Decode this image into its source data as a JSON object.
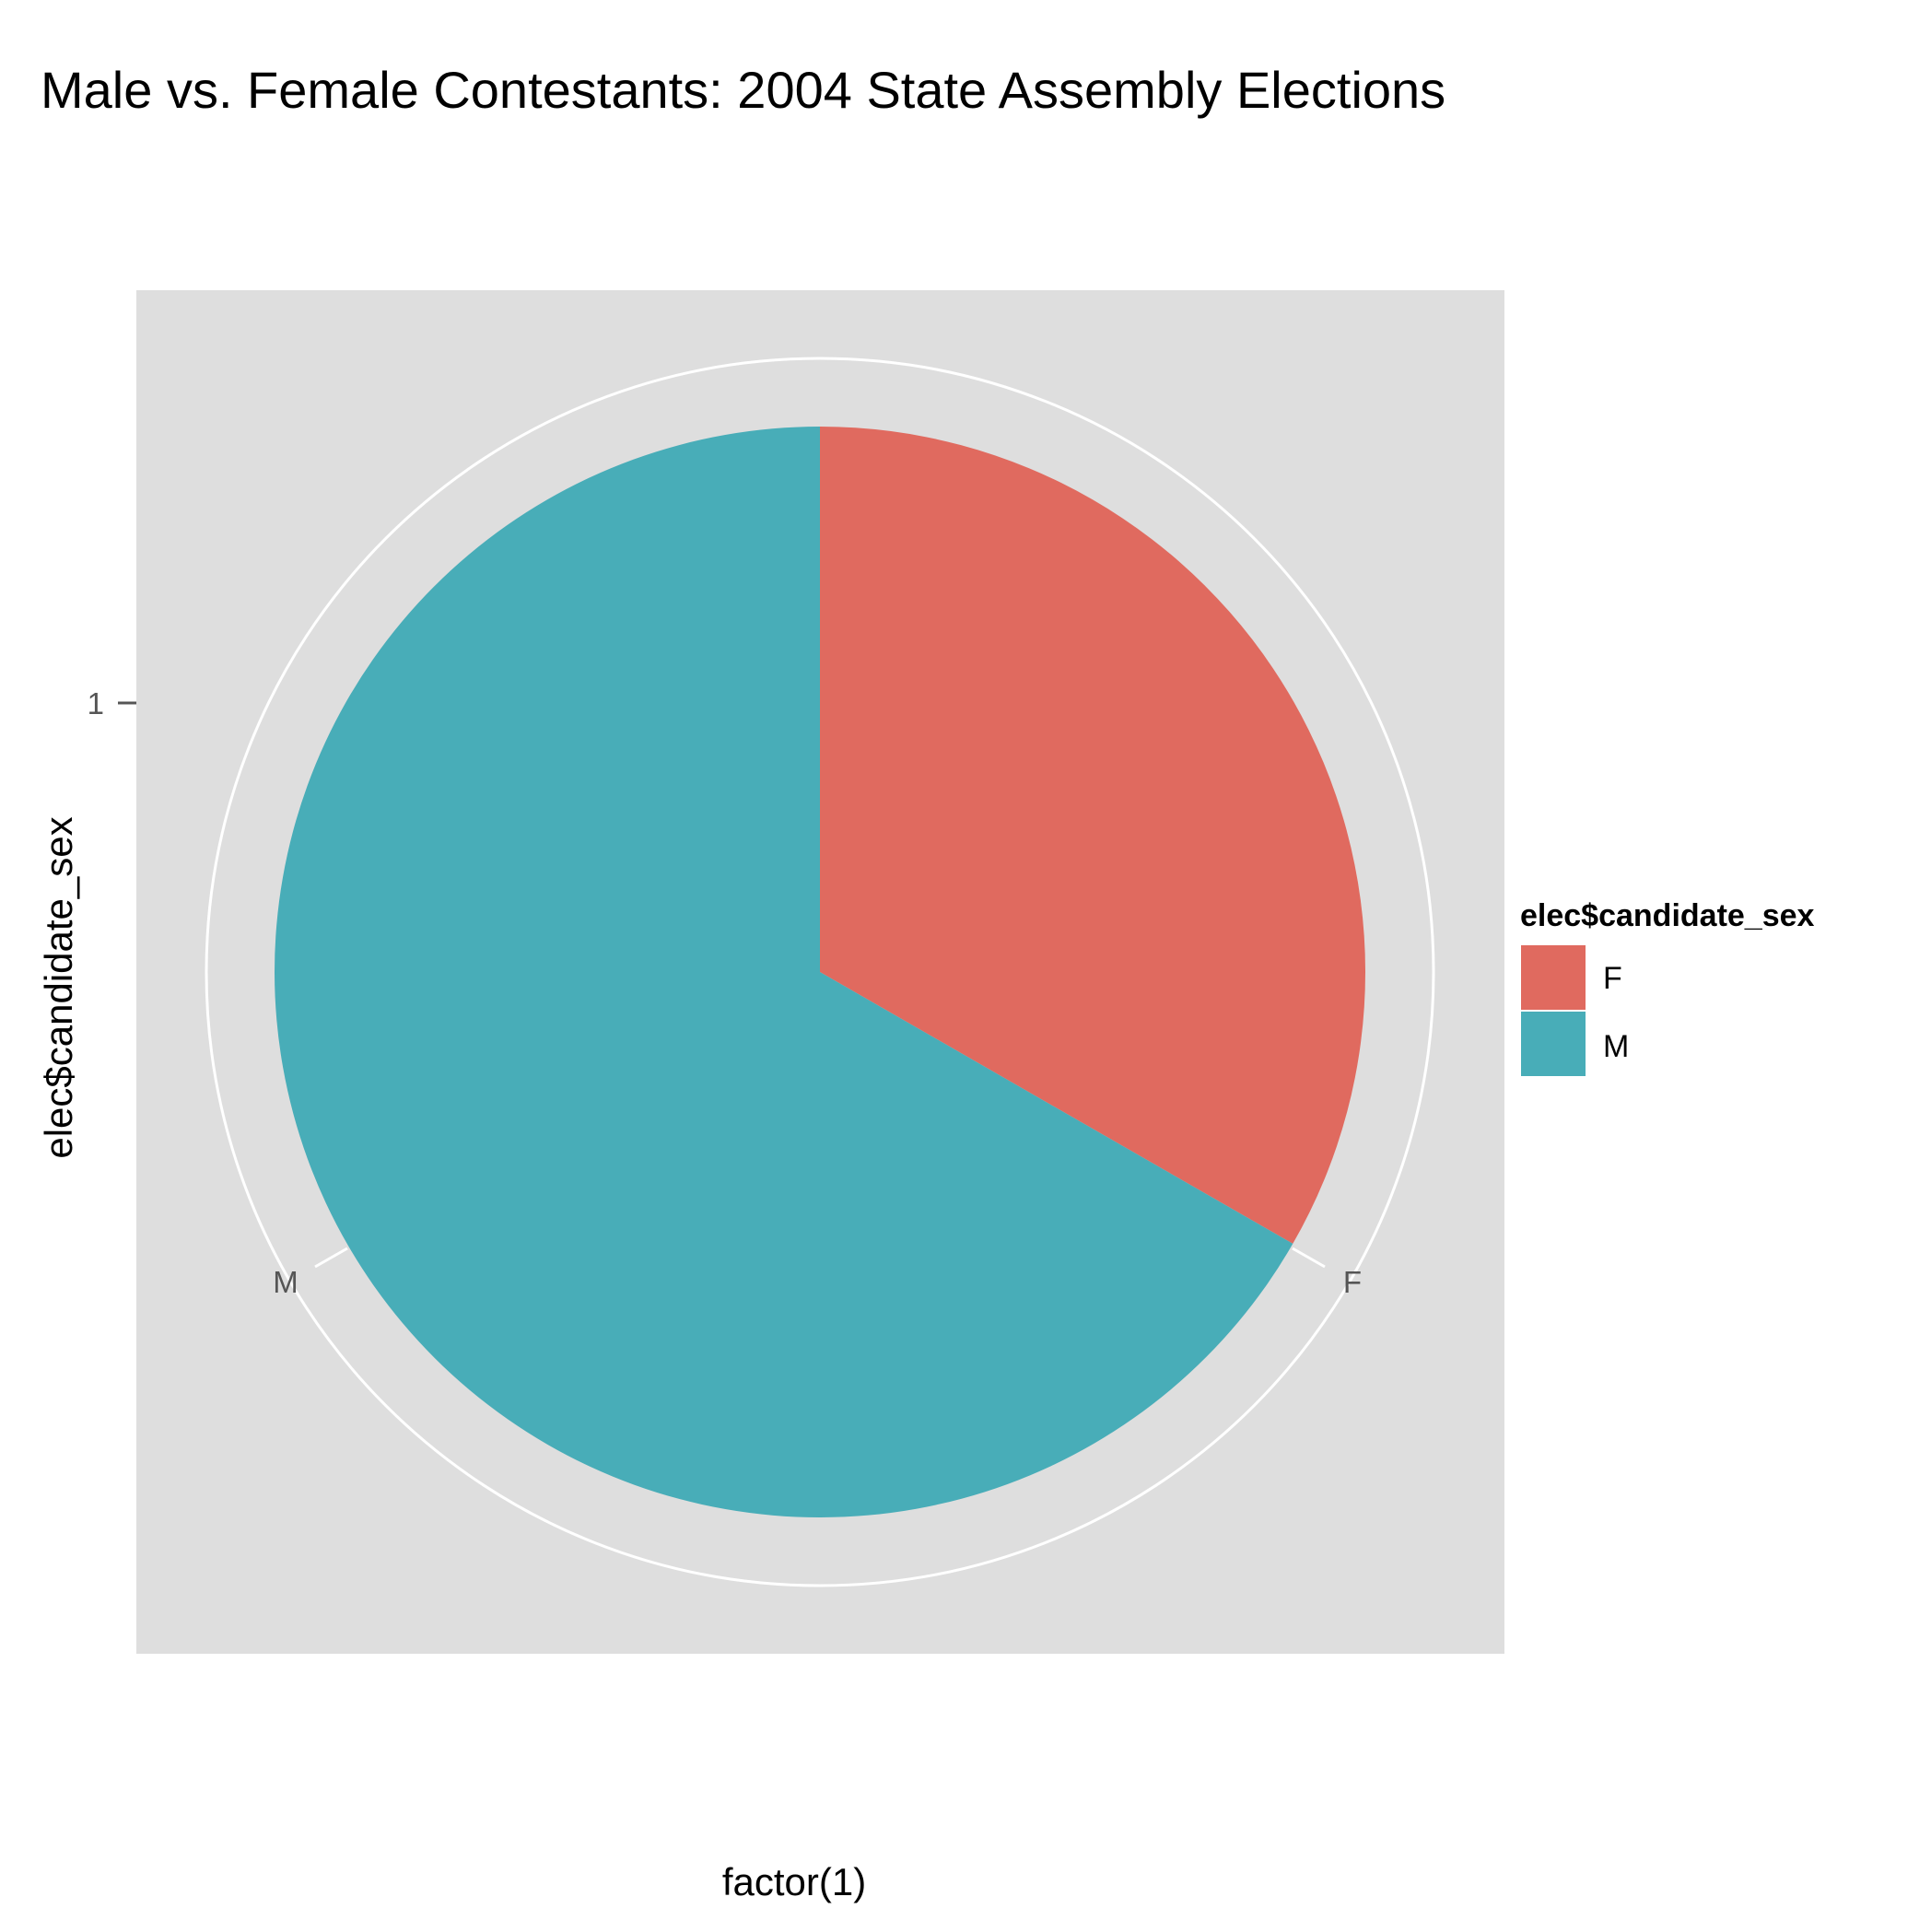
{
  "chart_data": {
    "type": "pie",
    "title": "Male vs. Female Contestants: 2004 State Assembly Elections",
    "xlabel": "factor(1)",
    "ylabel": "elec$candidate_sex",
    "y_ticks": [
      "1"
    ],
    "slice_labels": [
      "F",
      "M"
    ],
    "slices": [
      {
        "name": "F",
        "value": 0.333,
        "color": "#E06A5F"
      },
      {
        "name": "M",
        "value": 0.667,
        "color": "#48ADB8"
      }
    ],
    "legend": {
      "title": "elec$candidate_sex",
      "items": [
        {
          "label": "F",
          "color": "#E06A5F"
        },
        {
          "label": "M",
          "color": "#48ADB8"
        }
      ],
      "placement": "right"
    },
    "panel_background": "#DEDEDE",
    "grid": true
  }
}
